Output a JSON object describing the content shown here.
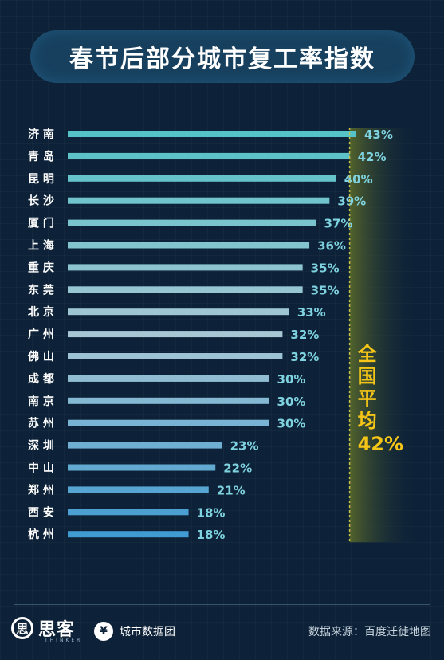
{
  "title": "春节后部分城市复工率指数",
  "chart_data": {
    "type": "bar",
    "orientation": "horizontal",
    "title": "春节后部分城市复工率指数",
    "categories": [
      "济 南",
      "青 岛",
      "昆 明",
      "长 沙",
      "厦 门",
      "上 海",
      "重 庆",
      "东 莞",
      "北 京",
      "广 州",
      "佛 山",
      "成 都",
      "南 京",
      "苏 州",
      "深 圳",
      "中 山",
      "郑 州",
      "西 安",
      "杭 州"
    ],
    "values": [
      43,
      42,
      40,
      39,
      37,
      36,
      35,
      35,
      33,
      32,
      32,
      30,
      30,
      30,
      23,
      22,
      21,
      18,
      18
    ],
    "value_labels": [
      "43%",
      "42%",
      "40%",
      "39%",
      "37%",
      "36%",
      "35%",
      "35%",
      "33%",
      "32%",
      "32%",
      "30%",
      "30%",
      "30%",
      "23%",
      "22%",
      "21%",
      "18%",
      "18%"
    ],
    "xlim": [
      0,
      43
    ],
    "reference_line": {
      "value": 42,
      "label_lines": [
        "全",
        "国",
        "平",
        "均"
      ],
      "label_value": "42%"
    },
    "colors": {
      "bar_top": "#55c2c8",
      "bar_mid": "#a8c7d4",
      "bar_bottom": "#3f9bd1",
      "label": "#7fd3e0",
      "average": "#f5c518"
    }
  },
  "footer": {
    "logo_mark": "思",
    "logo_name": "思客",
    "logo_sub": "THINKER",
    "logo2_mark": "¥",
    "logo2_name": "城市数据团",
    "source": "数据来源：百度迁徙地图"
  }
}
